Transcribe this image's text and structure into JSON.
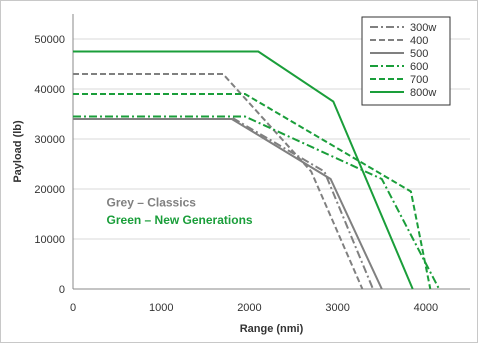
{
  "chart_data": {
    "type": "line",
    "title": "",
    "xlabel": "Range (nmi)",
    "ylabel": "Payload (lb)",
    "xlim": [
      0,
      4500
    ],
    "ylim": [
      0,
      55000
    ],
    "x_ticks": [
      0,
      1000,
      2000,
      3000,
      4000
    ],
    "y_ticks": [
      0,
      10000,
      20000,
      30000,
      40000,
      50000
    ],
    "grid": "horizontal",
    "legend_position": "top-right",
    "series": [
      {
        "name": "300w",
        "color": "#808080",
        "dash": "dashdot",
        "points": [
          [
            0,
            34500
          ],
          [
            1780,
            34500
          ],
          [
            2850,
            23500
          ],
          [
            3400,
            0
          ]
        ]
      },
      {
        "name": "400",
        "color": "#808080",
        "dash": "dash",
        "points": [
          [
            0,
            43000
          ],
          [
            1700,
            43000
          ],
          [
            2700,
            23500
          ],
          [
            3280,
            0
          ]
        ]
      },
      {
        "name": "500",
        "color": "#808080",
        "dash": "solid",
        "points": [
          [
            0,
            34000
          ],
          [
            1800,
            34000
          ],
          [
            2920,
            22000
          ],
          [
            3500,
            0
          ]
        ]
      },
      {
        "name": "600",
        "color": "#1a9e3a",
        "dash": "dashdot",
        "points": [
          [
            0,
            34500
          ],
          [
            1950,
            34500
          ],
          [
            3500,
            22000
          ],
          [
            4150,
            0
          ]
        ]
      },
      {
        "name": "700",
        "color": "#1a9e3a",
        "dash": "dash",
        "points": [
          [
            0,
            39000
          ],
          [
            1950,
            39000
          ],
          [
            3830,
            19500
          ],
          [
            4050,
            0
          ]
        ]
      },
      {
        "name": "800w",
        "color": "#1a9e3a",
        "dash": "solid",
        "points": [
          [
            0,
            47500
          ],
          [
            2100,
            47500
          ],
          [
            2950,
            37500
          ],
          [
            3850,
            0
          ]
        ]
      }
    ],
    "annotations": [
      {
        "text": "Grey – Classics",
        "color": "#808080",
        "x": 380,
        "y": 16500
      },
      {
        "text": "Green – New Generations",
        "color": "#1a9e3a",
        "x": 380,
        "y": 13000
      }
    ]
  }
}
